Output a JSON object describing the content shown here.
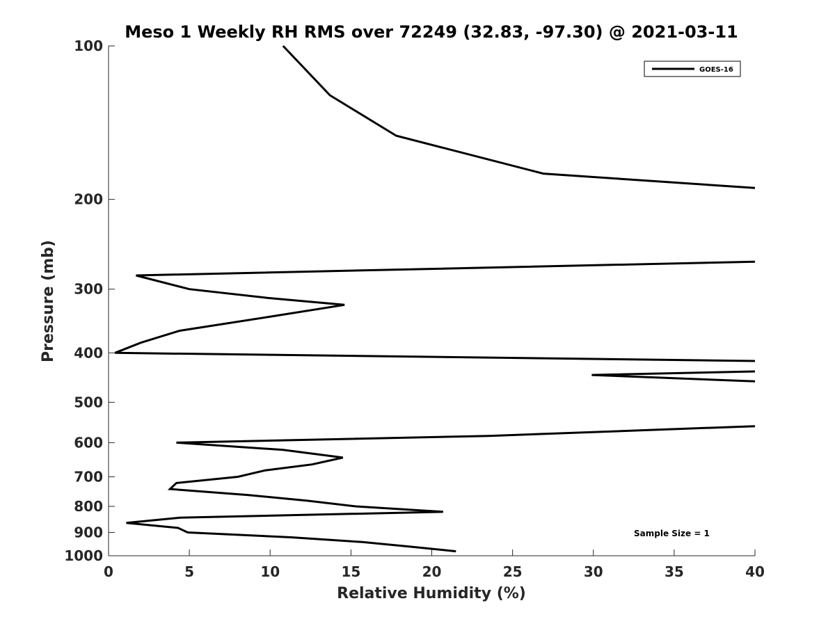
{
  "chart_data": {
    "type": "line",
    "title": "Meso 1 Weekly RH RMS over 72249 (32.83, -97.30) @ 2021-03-11",
    "xlabel": "Relative Humidity (%)",
    "ylabel": "Pressure (mb)",
    "xlim": [
      0,
      40
    ],
    "ylim": [
      100,
      1000
    ],
    "yscale": "log-reversed",
    "xticks": [
      0,
      5,
      10,
      15,
      20,
      25,
      30,
      35,
      40
    ],
    "yticks": [
      100,
      200,
      300,
      400,
      500,
      600,
      700,
      800,
      900,
      1000
    ],
    "grid": false,
    "legend_position": "top-right",
    "annotation": "Sample Size = 1",
    "series": [
      {
        "name": "GOES-16",
        "color": "#000000",
        "points": [
          [
            10.8,
            100
          ],
          [
            13.7,
            125
          ],
          [
            17.8,
            150
          ],
          [
            26.9,
            178
          ],
          [
            40,
            190
          ],
          [
            null,
            null
          ],
          [
            40,
            265
          ],
          [
            1.7,
            282
          ],
          [
            5.0,
            300
          ],
          [
            9.8,
            312
          ],
          [
            14.6,
            322
          ],
          [
            9.9,
            340
          ],
          [
            4.4,
            362
          ],
          [
            2.0,
            382
          ],
          [
            0.4,
            400
          ],
          [
            40,
            415
          ],
          [
            null,
            null
          ],
          [
            40,
            435
          ],
          [
            29.9,
            442
          ],
          [
            40,
            455
          ],
          [
            null,
            null
          ],
          [
            40,
            557
          ],
          [
            23.5,
            582
          ],
          [
            4.2,
            600
          ],
          [
            10.8,
            620
          ],
          [
            14.5,
            642
          ],
          [
            12.6,
            662
          ],
          [
            9.7,
            680
          ],
          [
            8.0,
            700
          ],
          [
            4.2,
            720
          ],
          [
            3.8,
            740
          ],
          [
            8.6,
            760
          ],
          [
            12.3,
            780
          ],
          [
            15.3,
            800
          ],
          [
            20.7,
            820
          ],
          [
            4.4,
            842
          ],
          [
            1.1,
            862
          ],
          [
            4.3,
            882
          ],
          [
            4.9,
            900
          ],
          [
            11.3,
            920
          ],
          [
            15.7,
            940
          ],
          [
            18.7,
            960
          ],
          [
            21.5,
            980
          ]
        ]
      }
    ]
  }
}
